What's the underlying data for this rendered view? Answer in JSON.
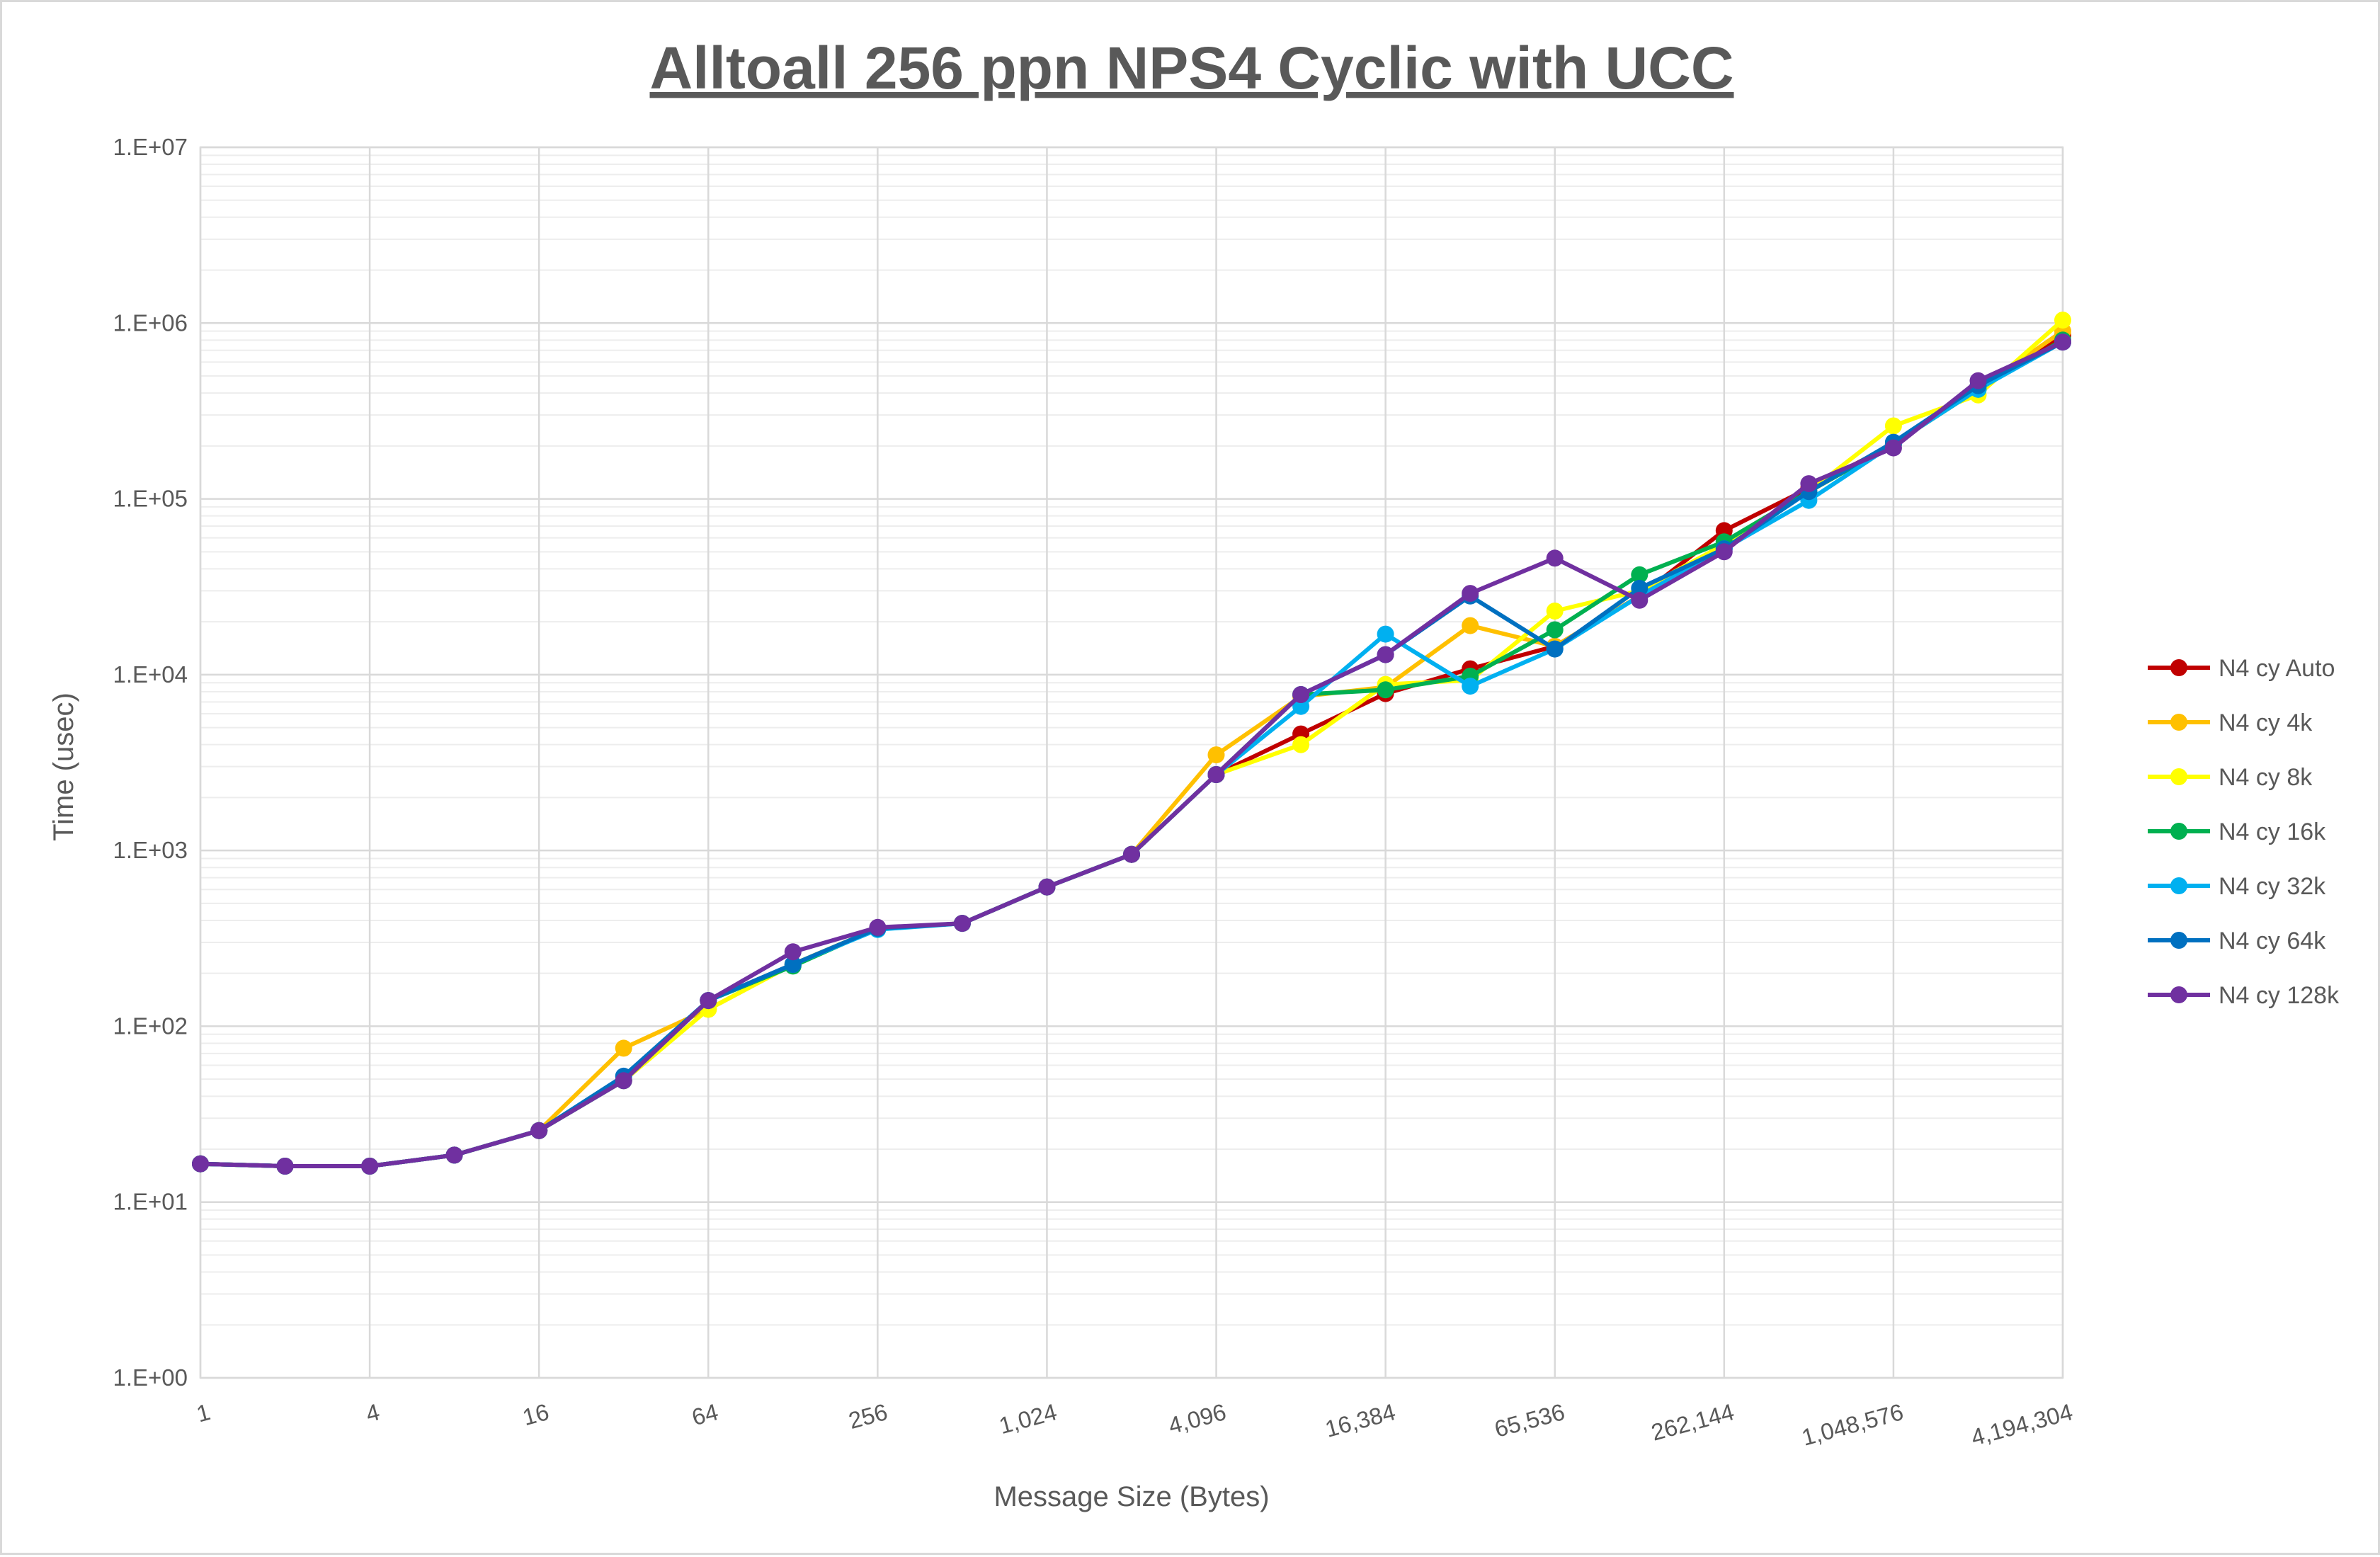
{
  "chart_data": {
    "type": "line",
    "title": "Alltoall 256 ppn NPS4 Cyclic with UCC",
    "xlabel": "Message Size (Bytes)",
    "ylabel": "Time (usec)",
    "x_scale": "log2",
    "y_scale": "log10",
    "x": [
      1,
      2,
      4,
      8,
      16,
      32,
      64,
      128,
      256,
      512,
      1024,
      2048,
      4096,
      8192,
      16384,
      32768,
      65536,
      131072,
      262144,
      524288,
      1048576,
      2097152,
      4194304
    ],
    "x_tick_labels": [
      "1",
      "4",
      "16",
      "64",
      "256",
      "1,024",
      "4,096",
      "16,384",
      "65,536",
      "262,144",
      "1,048,576",
      "4,194,304"
    ],
    "x_tick_values": [
      1,
      4,
      16,
      64,
      256,
      1024,
      4096,
      16384,
      65536,
      262144,
      1048576,
      4194304
    ],
    "y_tick_labels": [
      "1.E+00",
      "1.E+01",
      "1.E+02",
      "1.E+03",
      "1.E+04",
      "1.E+05",
      "1.E+06",
      "1.E+07"
    ],
    "y_tick_values": [
      1,
      10,
      100,
      1000,
      10000,
      100000,
      1000000,
      10000000
    ],
    "xlim": [
      1,
      4194304
    ],
    "ylim": [
      1,
      10000000
    ],
    "grid": true,
    "legend_position": "right",
    "series": [
      {
        "name": "N4 cy Auto",
        "color": "#c00000",
        "values": [
          16.5,
          16,
          16,
          18.5,
          25.5,
          49,
          140,
          225,
          360,
          385,
          620,
          950,
          2700,
          4600,
          7800,
          10800,
          14500,
          28000,
          66000,
          115000,
          205000,
          440000,
          850000
        ]
      },
      {
        "name": "N4 cy 4k",
        "color": "#ffc000",
        "values": [
          16.5,
          16,
          16,
          18.5,
          25.5,
          75,
          125,
          225,
          360,
          385,
          620,
          950,
          3500,
          7500,
          8500,
          19000,
          14500,
          28000,
          55000,
          110000,
          205000,
          420000,
          900000
        ]
      },
      {
        "name": "N4 cy 8k",
        "color": "#ffff00",
        "values": [
          16.5,
          16,
          16,
          18.5,
          25.5,
          49,
          125,
          225,
          360,
          385,
          620,
          950,
          2700,
          4000,
          8800,
          9300,
          23000,
          30000,
          55000,
          110000,
          260000,
          390000,
          1040000
        ]
      },
      {
        "name": "N4 cy 16k",
        "color": "#00b050",
        "values": [
          16.5,
          16,
          16,
          18.5,
          25.5,
          49,
          140,
          220,
          360,
          385,
          620,
          950,
          2700,
          7700,
          8200,
          9800,
          18000,
          37000,
          57000,
          110000,
          205000,
          420000,
          800000
        ]
      },
      {
        "name": "N4 cy 32k",
        "color": "#00b0f0",
        "values": [
          16.5,
          16,
          16,
          18.5,
          25.5,
          49,
          140,
          225,
          355,
          385,
          620,
          950,
          2700,
          6600,
          17000,
          8600,
          14000,
          28000,
          52000,
          98000,
          205000,
          420000,
          780000
        ]
      },
      {
        "name": "N4 cy 64k",
        "color": "#0070c0",
        "values": [
          16.5,
          16,
          16,
          18.5,
          25.5,
          52,
          140,
          225,
          360,
          385,
          620,
          950,
          2700,
          7700,
          13000,
          28000,
          14000,
          31000,
          52000,
          110000,
          210000,
          440000,
          780000
        ]
      },
      {
        "name": "N4 cy 128k",
        "color": "#7030a0",
        "values": [
          16.5,
          16,
          16,
          18.5,
          25.5,
          49,
          140,
          265,
          365,
          385,
          620,
          950,
          2700,
          7700,
          13000,
          29000,
          46000,
          26500,
          50000,
          122000,
          195000,
          470000,
          780000
        ]
      }
    ]
  }
}
